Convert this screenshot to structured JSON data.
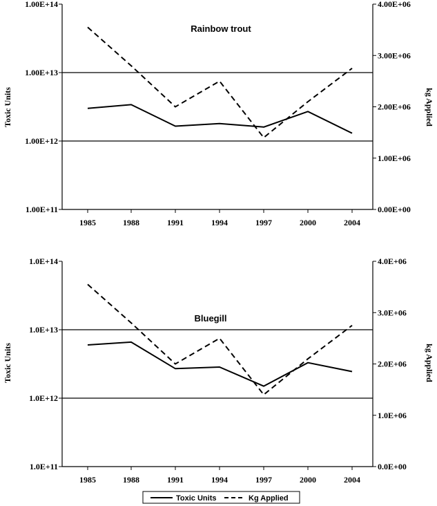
{
  "chart_data": [
    {
      "type": "line",
      "title": "Rainbow  trout",
      "categories": [
        "1985",
        "1988",
        "1991",
        "1994",
        "1997",
        "2000",
        "2004"
      ],
      "y_left": {
        "label": "Toxic Units",
        "scale": "log",
        "range": [
          100000000000.0,
          100000000000000.0
        ],
        "tick_labels": [
          "1.00E+11",
          "1.00E+12",
          "1.00E+13",
          "1.00E+14"
        ]
      },
      "y_right": {
        "label": "kg Applied",
        "scale": "linear",
        "range": [
          0,
          4000000
        ],
        "tick_labels": [
          "0.00E+00",
          "1.00E+06",
          "2.00E+06",
          "3.00E+06",
          "4.00E+06"
        ]
      },
      "series": [
        {
          "name": "Toxic Units",
          "axis": "left",
          "style": "solid",
          "values": [
            3000000000000.0,
            3400000000000.0,
            1650000000000.0,
            1800000000000.0,
            1600000000000.0,
            2700000000000.0,
            1300000000000.0
          ]
        },
        {
          "name": "Kg Applied",
          "axis": "right",
          "style": "dashed",
          "values": [
            3550000,
            2800000,
            2000000,
            2500000,
            1400000,
            2100000,
            2750000
          ]
        }
      ],
      "gridlines": "major y only (1.00E+12, 1.00E+13)"
    },
    {
      "type": "line",
      "title": "Bluegill",
      "categories": [
        "1985",
        "1988",
        "1991",
        "1994",
        "1997",
        "2000",
        "2004"
      ],
      "y_left": {
        "label": "Toxic Units",
        "scale": "log",
        "range": [
          100000000000.0,
          100000000000000.0
        ],
        "tick_labels": [
          "1.0E+11",
          "1.0E+12",
          "1.0E+13",
          "1.0E+14"
        ]
      },
      "y_right": {
        "label": "kg Applied",
        "scale": "linear",
        "range": [
          0,
          4000000
        ],
        "tick_labels": [
          "0.0E+00",
          "1.0E+06",
          "2.0E+06",
          "3.0E+06",
          "4.0E+06"
        ]
      },
      "series": [
        {
          "name": "Toxic Units",
          "axis": "left",
          "style": "solid",
          "values": [
            6000000000000.0,
            6600000000000.0,
            2700000000000.0,
            2850000000000.0,
            1500000000000.0,
            3300000000000.0,
            2450000000000.0
          ]
        },
        {
          "name": "Kg Applied",
          "axis": "right",
          "style": "dashed",
          "values": [
            3550000,
            2800000,
            2000000,
            2500000,
            1400000,
            2100000,
            2750000
          ]
        }
      ],
      "gridlines": "major y only (1.0E+12, 1.0E+13)"
    }
  ],
  "legend": {
    "placement": "bottom",
    "items": [
      {
        "label": "Toxic Units",
        "style": "solid"
      },
      {
        "label": "Kg Applied",
        "style": "dashed"
      }
    ]
  }
}
